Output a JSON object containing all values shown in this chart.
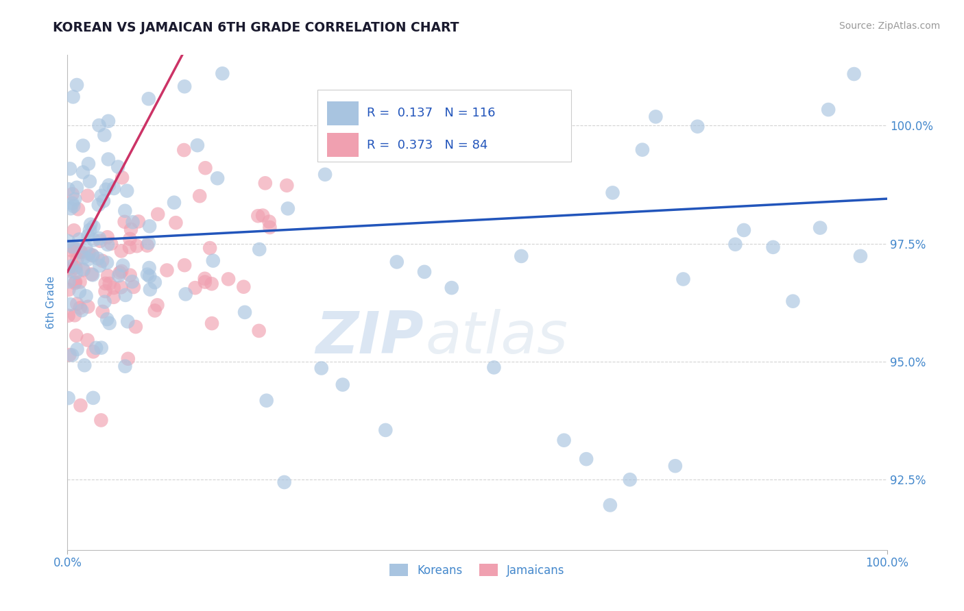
{
  "title": "KOREAN VS JAMAICAN 6TH GRADE CORRELATION CHART",
  "source_text": "Source: ZipAtlas.com",
  "ylabel": "6th Grade",
  "watermark_zip": "ZIP",
  "watermark_atlas": "atlas",
  "xlim": [
    0.0,
    100.0
  ],
  "ylim": [
    91.0,
    101.5
  ],
  "yticks": [
    92.5,
    95.0,
    97.5,
    100.0
  ],
  "ytick_labels": [
    "92.5%",
    "95.0%",
    "97.5%",
    "100.0%"
  ],
  "xtick_labels": [
    "0.0%",
    "100.0%"
  ],
  "korean_R": 0.137,
  "korean_N": 116,
  "jamaican_R": 0.373,
  "jamaican_N": 84,
  "korean_color": "#a8c4e0",
  "jamaican_color": "#f0a0b0",
  "korean_line_color": "#2255bb",
  "jamaican_line_color": "#cc3366",
  "title_color": "#1a1a2e",
  "tick_label_color": "#4488cc",
  "grid_color": "#c8c8c8",
  "background_color": "#ffffff",
  "legend_text_color": "#2255bb",
  "korean_line_start_y": 97.55,
  "korean_line_end_y": 98.45,
  "jamaican_line_start_y": 96.9,
  "jamaican_line_end_y": 101.5,
  "jamaican_line_end_x": 14.0
}
